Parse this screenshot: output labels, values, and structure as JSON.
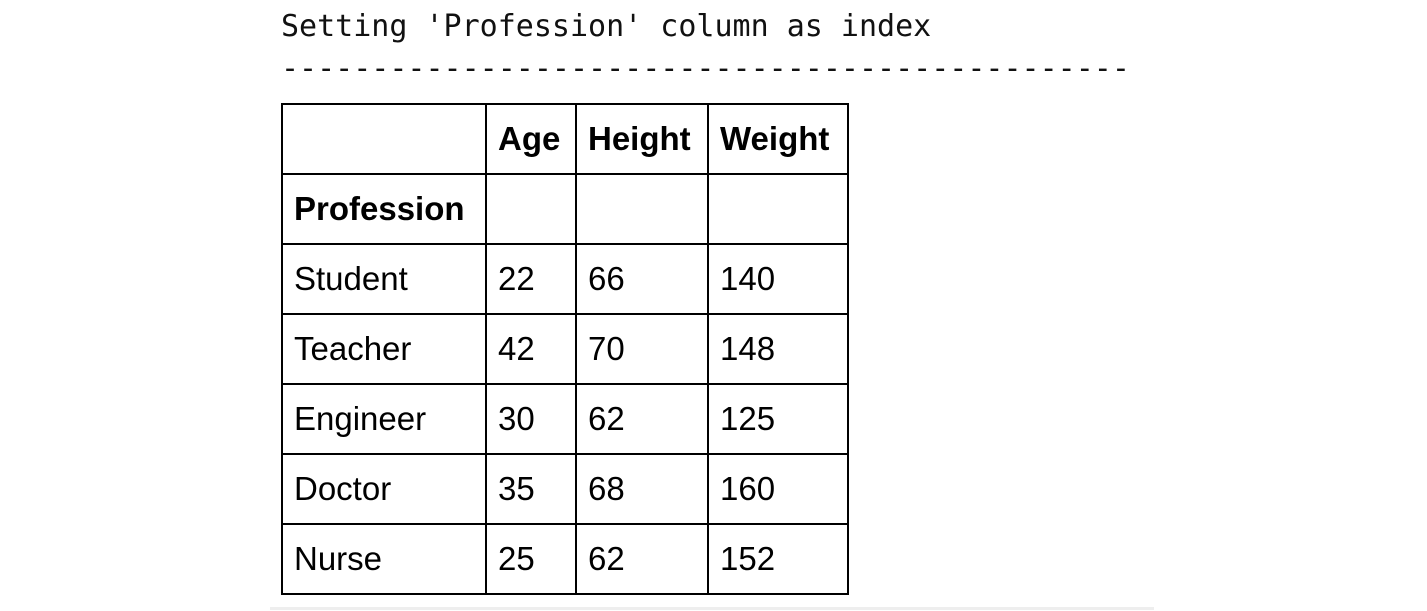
{
  "output": {
    "message": "Setting 'Profession' column as index",
    "separator": "-----------------------------------------------"
  },
  "table": {
    "columns": [
      "",
      "Age",
      "Height",
      "Weight"
    ],
    "index_name": "Profession",
    "rows": [
      {
        "index": "Student",
        "values": [
          "22",
          "66",
          "140"
        ]
      },
      {
        "index": "Teacher",
        "values": [
          "42",
          "70",
          "148"
        ]
      },
      {
        "index": "Engineer",
        "values": [
          "30",
          "62",
          "125"
        ]
      },
      {
        "index": "Doctor",
        "values": [
          "35",
          "68",
          "160"
        ]
      },
      {
        "index": "Nurse",
        "values": [
          "25",
          "62",
          "152"
        ]
      }
    ]
  }
}
